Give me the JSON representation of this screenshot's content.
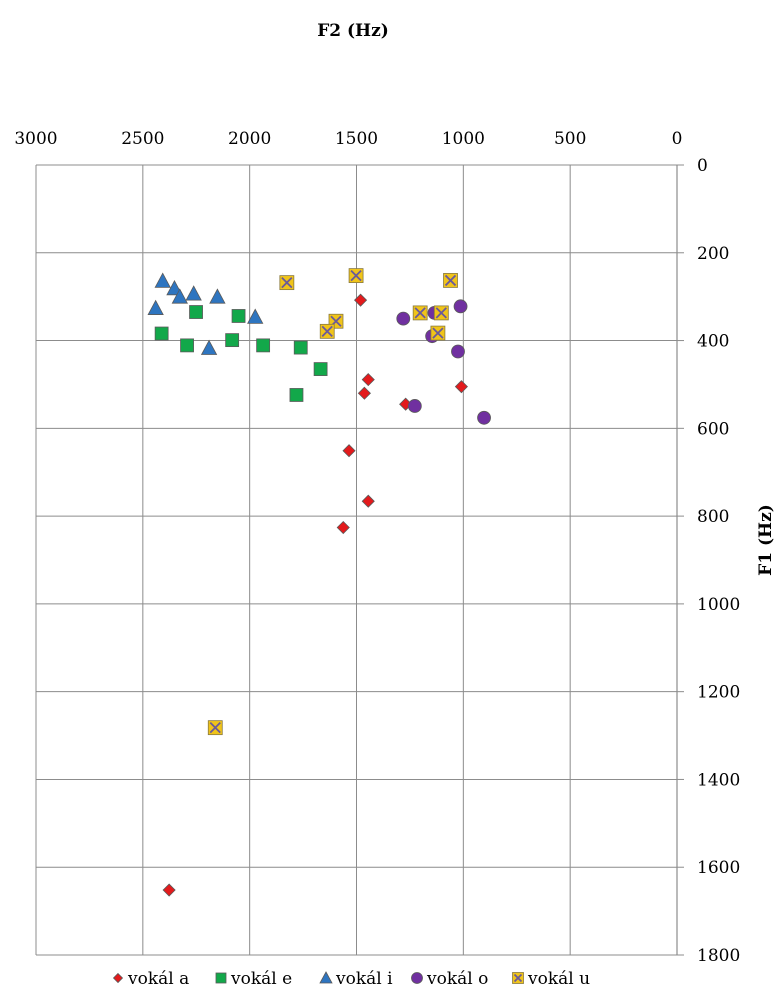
{
  "chart_data": {
    "type": "scatter",
    "title": "",
    "xlabel": "F2 (Hz)",
    "ylabel": "F1 (Hz)",
    "xlim": [
      0,
      3000
    ],
    "ylim": [
      0,
      1800
    ],
    "x_reversed": true,
    "y_reversed": true,
    "x_axis_position": "top",
    "y_axis_position": "right",
    "x_ticks": [
      3000,
      2500,
      2000,
      1500,
      1000,
      500,
      0
    ],
    "y_ticks": [
      0,
      200,
      400,
      600,
      800,
      1000,
      1200,
      1400,
      1600,
      1800
    ],
    "grid": true,
    "legend_position": "bottom",
    "series": [
      {
        "name": "vokál a",
        "marker": "diamond",
        "color": "#e31a1c",
        "points": [
          [
            1481,
            308
          ],
          [
            1445,
            489
          ],
          [
            1463,
            520
          ],
          [
            1270,
            545
          ],
          [
            1009,
            505
          ],
          [
            1535,
            651
          ],
          [
            1445,
            766
          ],
          [
            1562,
            826
          ],
          [
            2377,
            1652
          ]
        ]
      },
      {
        "name": "vokál e",
        "marker": "square",
        "color": "#12a84a",
        "points": [
          [
            2412,
            384
          ],
          [
            2251,
            335
          ],
          [
            2293,
            411
          ],
          [
            2082,
            399
          ],
          [
            2052,
            344
          ],
          [
            1937,
            411
          ],
          [
            1761,
            416
          ],
          [
            1668,
            465
          ],
          [
            1781,
            524
          ]
        ]
      },
      {
        "name": "vokál i",
        "marker": "triangle",
        "color": "#2e75c0",
        "points": [
          [
            2407,
            264
          ],
          [
            2352,
            281
          ],
          [
            2327,
            300
          ],
          [
            2262,
            293
          ],
          [
            2151,
            300
          ],
          [
            2440,
            326
          ],
          [
            1974,
            346
          ],
          [
            2190,
            417
          ]
        ]
      },
      {
        "name": "vokál o",
        "marker": "circle",
        "color": "#7030a0",
        "points": [
          [
            1281,
            350
          ],
          [
            1013,
            322
          ],
          [
            1135,
            337
          ],
          [
            1146,
            390
          ],
          [
            1025,
            425
          ],
          [
            1227,
            549
          ],
          [
            903,
            576
          ]
        ]
      },
      {
        "name": "vokál u",
        "marker": "x-square",
        "color": "#f0c419",
        "points": [
          [
            1826,
            268
          ],
          [
            1502,
            252
          ],
          [
            1060,
            263
          ],
          [
            1596,
            356
          ],
          [
            1637,
            379
          ],
          [
            1202,
            337
          ],
          [
            1103,
            337
          ],
          [
            1119,
            383
          ],
          [
            2161,
            1282
          ]
        ]
      }
    ]
  }
}
